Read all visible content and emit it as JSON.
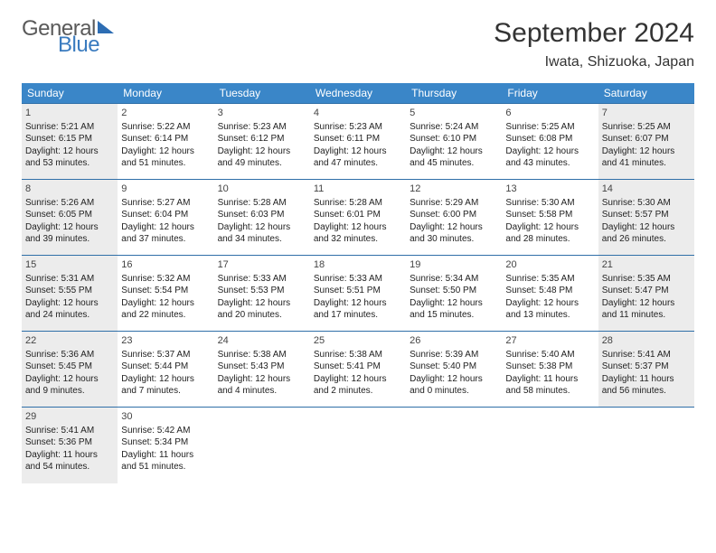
{
  "logo": {
    "line1": "General",
    "line2": "Blue"
  },
  "title": "September 2024",
  "location": "Iwata, Shizuoka, Japan",
  "colors": {
    "header_bg": "#3a86c8",
    "header_text": "#ffffff",
    "border": "#2f6fa8",
    "shaded_cell": "#ececec",
    "logo_gray": "#5a5a5a",
    "logo_blue": "#3a7bbf"
  },
  "typography": {
    "title_fontsize": 30,
    "location_fontsize": 16,
    "dayheader_fontsize": 12,
    "cell_fontsize": 10
  },
  "layout": {
    "columns": 7,
    "rows": 5
  },
  "day_headers": [
    "Sunday",
    "Monday",
    "Tuesday",
    "Wednesday",
    "Thursday",
    "Friday",
    "Saturday"
  ],
  "days": [
    {
      "n": 1,
      "shaded": true,
      "sunrise": "5:21 AM",
      "sunset": "6:15 PM",
      "daylight": "12 hours and 53 minutes."
    },
    {
      "n": 2,
      "shaded": false,
      "sunrise": "5:22 AM",
      "sunset": "6:14 PM",
      "daylight": "12 hours and 51 minutes."
    },
    {
      "n": 3,
      "shaded": false,
      "sunrise": "5:23 AM",
      "sunset": "6:12 PM",
      "daylight": "12 hours and 49 minutes."
    },
    {
      "n": 4,
      "shaded": false,
      "sunrise": "5:23 AM",
      "sunset": "6:11 PM",
      "daylight": "12 hours and 47 minutes."
    },
    {
      "n": 5,
      "shaded": false,
      "sunrise": "5:24 AM",
      "sunset": "6:10 PM",
      "daylight": "12 hours and 45 minutes."
    },
    {
      "n": 6,
      "shaded": false,
      "sunrise": "5:25 AM",
      "sunset": "6:08 PM",
      "daylight": "12 hours and 43 minutes."
    },
    {
      "n": 7,
      "shaded": true,
      "sunrise": "5:25 AM",
      "sunset": "6:07 PM",
      "daylight": "12 hours and 41 minutes."
    },
    {
      "n": 8,
      "shaded": true,
      "sunrise": "5:26 AM",
      "sunset": "6:05 PM",
      "daylight": "12 hours and 39 minutes."
    },
    {
      "n": 9,
      "shaded": false,
      "sunrise": "5:27 AM",
      "sunset": "6:04 PM",
      "daylight": "12 hours and 37 minutes."
    },
    {
      "n": 10,
      "shaded": false,
      "sunrise": "5:28 AM",
      "sunset": "6:03 PM",
      "daylight": "12 hours and 34 minutes."
    },
    {
      "n": 11,
      "shaded": false,
      "sunrise": "5:28 AM",
      "sunset": "6:01 PM",
      "daylight": "12 hours and 32 minutes."
    },
    {
      "n": 12,
      "shaded": false,
      "sunrise": "5:29 AM",
      "sunset": "6:00 PM",
      "daylight": "12 hours and 30 minutes."
    },
    {
      "n": 13,
      "shaded": false,
      "sunrise": "5:30 AM",
      "sunset": "5:58 PM",
      "daylight": "12 hours and 28 minutes."
    },
    {
      "n": 14,
      "shaded": true,
      "sunrise": "5:30 AM",
      "sunset": "5:57 PM",
      "daylight": "12 hours and 26 minutes."
    },
    {
      "n": 15,
      "shaded": true,
      "sunrise": "5:31 AM",
      "sunset": "5:55 PM",
      "daylight": "12 hours and 24 minutes."
    },
    {
      "n": 16,
      "shaded": false,
      "sunrise": "5:32 AM",
      "sunset": "5:54 PM",
      "daylight": "12 hours and 22 minutes."
    },
    {
      "n": 17,
      "shaded": false,
      "sunrise": "5:33 AM",
      "sunset": "5:53 PM",
      "daylight": "12 hours and 20 minutes."
    },
    {
      "n": 18,
      "shaded": false,
      "sunrise": "5:33 AM",
      "sunset": "5:51 PM",
      "daylight": "12 hours and 17 minutes."
    },
    {
      "n": 19,
      "shaded": false,
      "sunrise": "5:34 AM",
      "sunset": "5:50 PM",
      "daylight": "12 hours and 15 minutes."
    },
    {
      "n": 20,
      "shaded": false,
      "sunrise": "5:35 AM",
      "sunset": "5:48 PM",
      "daylight": "12 hours and 13 minutes."
    },
    {
      "n": 21,
      "shaded": true,
      "sunrise": "5:35 AM",
      "sunset": "5:47 PM",
      "daylight": "12 hours and 11 minutes."
    },
    {
      "n": 22,
      "shaded": true,
      "sunrise": "5:36 AM",
      "sunset": "5:45 PM",
      "daylight": "12 hours and 9 minutes."
    },
    {
      "n": 23,
      "shaded": false,
      "sunrise": "5:37 AM",
      "sunset": "5:44 PM",
      "daylight": "12 hours and 7 minutes."
    },
    {
      "n": 24,
      "shaded": false,
      "sunrise": "5:38 AM",
      "sunset": "5:43 PM",
      "daylight": "12 hours and 4 minutes."
    },
    {
      "n": 25,
      "shaded": false,
      "sunrise": "5:38 AM",
      "sunset": "5:41 PM",
      "daylight": "12 hours and 2 minutes."
    },
    {
      "n": 26,
      "shaded": false,
      "sunrise": "5:39 AM",
      "sunset": "5:40 PM",
      "daylight": "12 hours and 0 minutes."
    },
    {
      "n": 27,
      "shaded": false,
      "sunrise": "5:40 AM",
      "sunset": "5:38 PM",
      "daylight": "11 hours and 58 minutes."
    },
    {
      "n": 28,
      "shaded": true,
      "sunrise": "5:41 AM",
      "sunset": "5:37 PM",
      "daylight": "11 hours and 56 minutes."
    },
    {
      "n": 29,
      "shaded": true,
      "sunrise": "5:41 AM",
      "sunset": "5:36 PM",
      "daylight": "11 hours and 54 minutes."
    },
    {
      "n": 30,
      "shaded": false,
      "sunrise": "5:42 AM",
      "sunset": "5:34 PM",
      "daylight": "11 hours and 51 minutes."
    }
  ],
  "labels": {
    "sunrise": "Sunrise:",
    "sunset": "Sunset:",
    "daylight": "Daylight:"
  }
}
